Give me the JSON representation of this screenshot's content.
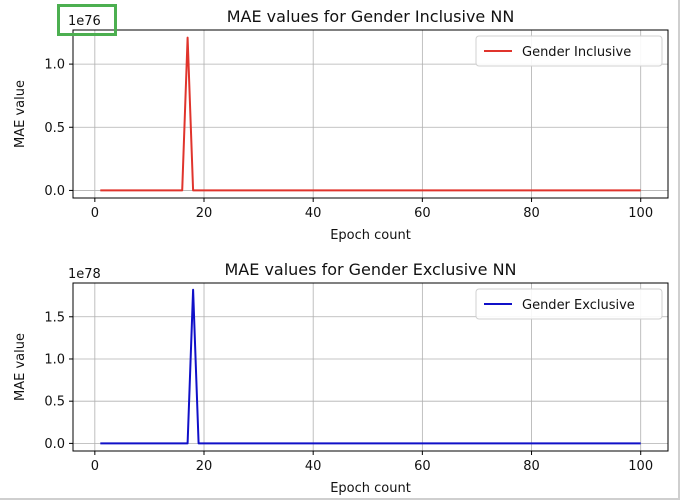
{
  "colors": {
    "inclusive_line": "#e0342c",
    "exclusive_line": "#1010c8",
    "grid": "#b0b0b0",
    "highlight_box": "#4caf50"
  },
  "chart_data": [
    {
      "type": "line",
      "title": "MAE values for Gender Inclusive NN",
      "xlabel": "Epoch count",
      "ylabel": "MAE value",
      "offset_text": "1e76",
      "xticks": [
        0,
        20,
        40,
        60,
        80,
        100
      ],
      "xtick_labels": [
        "0",
        "20",
        "40",
        "60",
        "80",
        "100"
      ],
      "yticks": [
        0,
        0.5,
        1.0
      ],
      "ytick_labels": [
        "0.0",
        "0.5",
        "1.0"
      ],
      "xlim": [
        -4,
        105
      ],
      "ylim": [
        -0.06,
        1.27
      ],
      "grid": true,
      "legend_position": "top-right",
      "series": [
        {
          "name": "Gender Inclusive",
          "color": "#e0342c",
          "x": [
            1,
            16,
            17,
            18,
            100
          ],
          "y": [
            0,
            0,
            1.21,
            0,
            0
          ]
        }
      ]
    },
    {
      "type": "line",
      "title": "MAE values for Gender Exclusive NN",
      "xlabel": "Epoch count",
      "ylabel": "MAE value",
      "offset_text": "1e78",
      "xticks": [
        0,
        20,
        40,
        60,
        80,
        100
      ],
      "xtick_labels": [
        "0",
        "20",
        "40",
        "60",
        "80",
        "100"
      ],
      "yticks": [
        0,
        0.5,
        1.0,
        1.5
      ],
      "ytick_labels": [
        "0.0",
        "0.5",
        "1.0",
        "1.5"
      ],
      "xlim": [
        -4,
        105
      ],
      "ylim": [
        -0.09,
        1.9
      ],
      "grid": true,
      "legend_position": "top-right",
      "series": [
        {
          "name": "Gender Exclusive",
          "color": "#1010c8",
          "x": [
            1,
            17,
            18,
            19,
            100
          ],
          "y": [
            0,
            0,
            1.82,
            0,
            0
          ]
        }
      ]
    }
  ]
}
